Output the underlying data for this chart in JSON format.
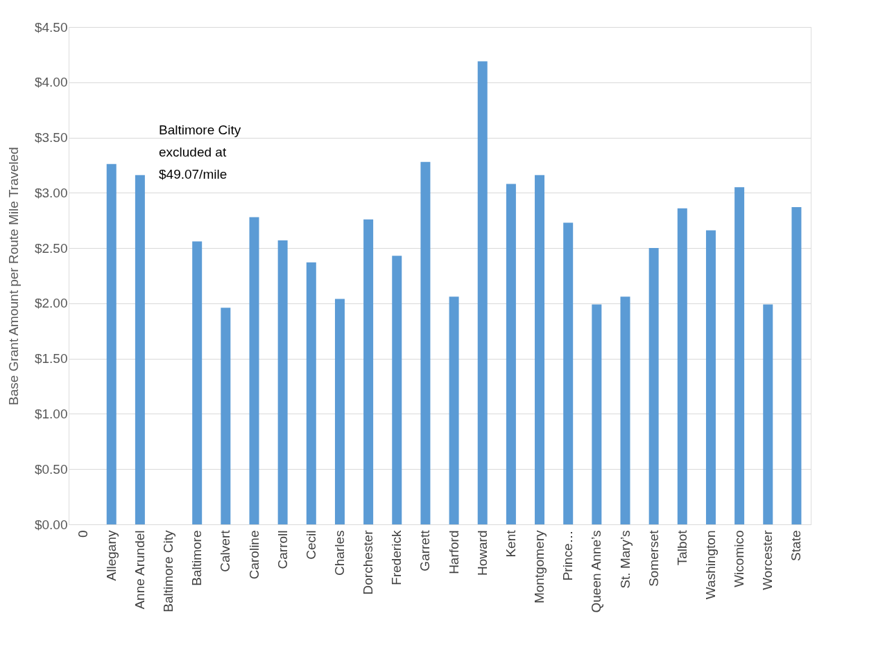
{
  "chart_data": {
    "type": "bar",
    "ylabel": "Base Grant Amount per Route Mile Traveled",
    "categories": [
      "0",
      "Allegany",
      "Anne Arundel",
      "Baltimore City",
      "Baltimore",
      "Calvert",
      "Caroline",
      "Carroll",
      "Cecil",
      "Charles",
      "Dorchester",
      "Frederick",
      "Garrett",
      "Harford",
      "Howard",
      "Kent",
      "Montgomery",
      "Prince…",
      "Queen Anne’s",
      "St. Mary’s",
      "Somerset",
      "Talbot",
      "Washington",
      "Wicomico",
      "Worcester",
      "State"
    ],
    "values": [
      null,
      3.26,
      3.16,
      null,
      2.56,
      1.96,
      2.78,
      2.57,
      2.37,
      2.04,
      2.76,
      2.43,
      3.28,
      2.06,
      4.19,
      3.08,
      3.16,
      2.73,
      1.99,
      2.06,
      2.5,
      2.86,
      2.66,
      3.05,
      1.99,
      2.87
    ],
    "color": "#5b9bd5",
    "ylim": [
      0,
      4.5
    ],
    "yticks": [
      {
        "value": 0,
        "label": "$0.00"
      },
      {
        "value": 0.5,
        "label": "$0.50"
      },
      {
        "value": 1,
        "label": "$1.00"
      },
      {
        "value": 1.5,
        "label": "$1.50"
      },
      {
        "value": 2,
        "label": "$2.00"
      },
      {
        "value": 2.5,
        "label": "$2.50"
      },
      {
        "value": 3,
        "label": "$3.00"
      },
      {
        "value": 3.5,
        "label": "$3.50"
      },
      {
        "value": 4,
        "label": "$4.00"
      },
      {
        "value": 4.5,
        "label": "$4.50"
      }
    ],
    "grid": "y",
    "annotations": [
      "Baltimore City\nexcluded at\n$49.07/mile"
    ]
  }
}
